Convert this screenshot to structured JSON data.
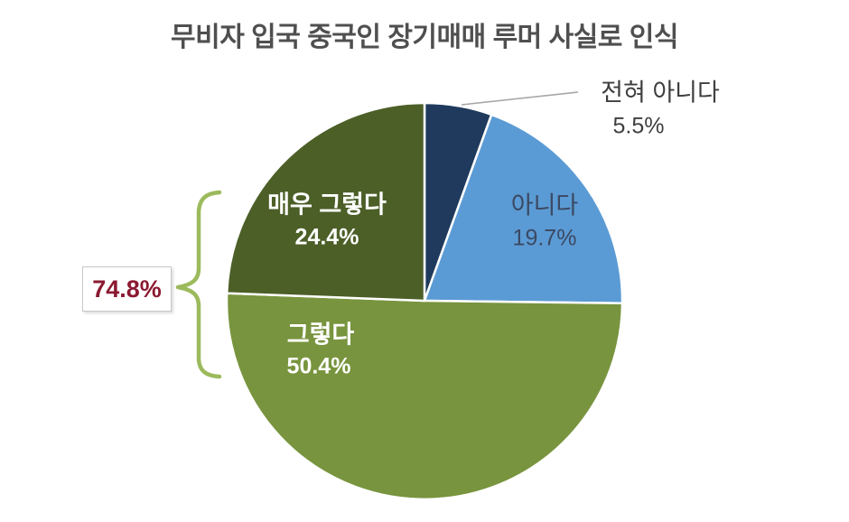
{
  "chart_data": {
    "type": "pie",
    "title": "무비자 입국 중국인 장기매매 루머 사실로 인식",
    "title_color": "#4f4f4f",
    "direction": "clockwise",
    "start_angle_deg": 0,
    "legend": "none",
    "slice_border_color": "#ffffff",
    "segments": [
      {
        "key": "not-at-all",
        "label": "전혀 아니다",
        "value": 5.5,
        "pct_label": "5.5%",
        "color": "#1f3a5c",
        "label_placement": "outside",
        "label_color": "#3f3f3f",
        "label_bold": false
      },
      {
        "key": "no",
        "label": "아니다",
        "value": 19.7,
        "pct_label": "19.7%",
        "color": "#5b9bd5",
        "label_placement": "inside",
        "label_color": "#3b4962",
        "label_bold": false
      },
      {
        "key": "yes",
        "label": "그렇다",
        "value": 50.4,
        "pct_label": "50.4%",
        "color": "#78943e",
        "label_placement": "inside",
        "label_color": "#ffffff",
        "label_bold": true
      },
      {
        "key": "very-yes",
        "label": "매우 그렇다",
        "value": 24.4,
        "pct_label": "24.4%",
        "color": "#4c5f27",
        "label_placement": "inside",
        "label_color": "#ffffff",
        "label_bold": true
      }
    ],
    "annotation": {
      "text": "74.8%",
      "value": 74.8,
      "color": "#8b1a31",
      "spans_segments": [
        "매우 그렇다",
        "그렇다"
      ],
      "bracket_color": "#9cba5c"
    }
  }
}
